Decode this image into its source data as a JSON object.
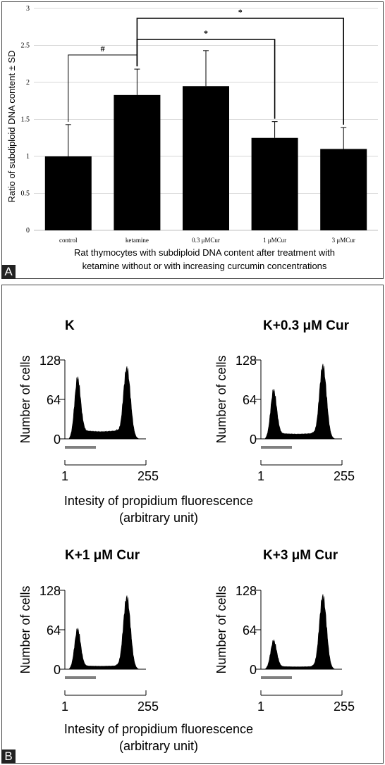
{
  "chart_data": [
    {
      "type": "bar",
      "panel": "A",
      "categories": [
        "control",
        "ketamine",
        "0.3 μMCur",
        "1 μMCur",
        "3 μMCur"
      ],
      "values": [
        1.0,
        1.83,
        1.95,
        1.25,
        1.1
      ],
      "errors": [
        0.43,
        0.35,
        0.48,
        0.22,
        0.29
      ],
      "ylabel": "Ratio of  subdiploid DNA content ± SD",
      "xlabel_lines": [
        "Rat thymocytes with subdiploid DNA content after treatment with",
        "ketamine without or with increasing curcumin concentrations"
      ],
      "ylim": [
        0,
        3
      ],
      "yticks": [
        "0",
        "0.5",
        "1",
        "1.5",
        "2",
        "2.5",
        "3"
      ],
      "grid": true,
      "bar_color": "#000000",
      "significance": [
        {
          "from": "control",
          "to": "ketamine",
          "symbol": "#"
        },
        {
          "from": "ketamine",
          "to": "1 μMCur",
          "symbol": "*"
        },
        {
          "from": "ketamine",
          "to": "3 μMCur",
          "symbol": "*"
        }
      ]
    },
    {
      "type": "area",
      "panel": "B",
      "ylabel": "Number of cells",
      "xlabel_lines": [
        "Intesity of propidium fluorescence",
        "(arbitrary unit)"
      ],
      "yticks": [
        "0",
        "64",
        "128"
      ],
      "xticks": [
        "1",
        "255"
      ],
      "ylim": [
        0,
        128
      ],
      "xlim": [
        1,
        255
      ],
      "fill_color": "#000000",
      "subdiploid_marker_color": "#808080",
      "histograms": [
        {
          "title": "K",
          "sub_peak": 100,
          "g1_peak": 118,
          "trough": 12
        },
        {
          "title": "K+0.3 μM Cur",
          "sub_peak": 80,
          "g1_peak": 122,
          "trough": 8
        },
        {
          "title": "K+1 μM Cur",
          "sub_peak": 66,
          "g1_peak": 120,
          "trough": 5
        },
        {
          "title": "K+3 μM Cur",
          "sub_peak": 47,
          "g1_peak": 122,
          "trough": 4
        }
      ]
    }
  ],
  "panel_labels": [
    "A",
    "B"
  ]
}
